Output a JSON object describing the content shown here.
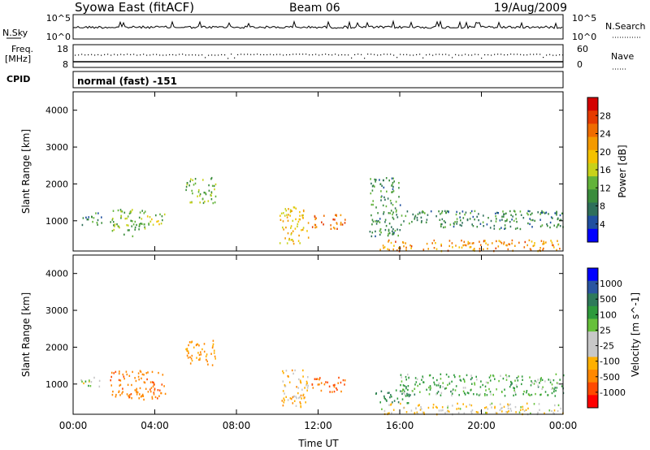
{
  "header": {
    "station": "Syowa East (fitACF)",
    "beam": "Beam 06",
    "date": "19/Aug/2009"
  },
  "top_panels": {
    "nsky_label": "N.Sky",
    "nsky_ticks": [
      "10^5",
      "10^0"
    ],
    "nsearch_label": "N.Search",
    "nsearch_ticks": [
      "10^5",
      "10^0"
    ],
    "freq_label_1": "Freq.",
    "freq_label_2": "[MHz]",
    "freq_ticks": [
      "18",
      "8"
    ],
    "nave_label": "Nave",
    "nave_ticks": [
      "60",
      "0"
    ],
    "cpid_label": "CPID",
    "cpid_text": "normal (fast) -151"
  },
  "x_axis": {
    "title": "Time UT",
    "tick_labels": [
      "00:00",
      "04:00",
      "08:00",
      "12:00",
      "16:00",
      "20:00",
      "00:00"
    ]
  },
  "colors": {
    "power_scale": [
      "#0000ff",
      "#1f4fa0",
      "#2e6f5a",
      "#3a8c3c",
      "#63b33a",
      "#c8d21a",
      "#f4c200",
      "#f49a00",
      "#ef6c00",
      "#e53a00",
      "#d40000"
    ],
    "velocity_scale": [
      "#ff0000",
      "#ff4a00",
      "#ff8800",
      "#ffb000",
      "#c8c8c8",
      "#c8c8c8",
      "#66c03a",
      "#2e9a3c",
      "#2e7a5a",
      "#2a55a0",
      "#0000ff"
    ]
  },
  "chart_data": [
    {
      "type": "heatmap",
      "title": "",
      "xlabel": "Time UT",
      "ylabel": "Slant Range [km]",
      "x_range_hours": [
        0,
        24
      ],
      "ylim": [
        180,
        4500
      ],
      "y_ticks": [
        "1000",
        "2000",
        "3000",
        "4000"
      ],
      "colorbar": {
        "label": "Power [dB]",
        "range": [
          0,
          30
        ],
        "tick_labels": [
          "4",
          "8",
          "12",
          "16",
          "20",
          "24",
          "28"
        ]
      },
      "echo_regions": [
        {
          "t_start": 0.3,
          "t_end": 1.4,
          "r_min": 900,
          "r_max": 1250,
          "level_db": 8
        },
        {
          "t_start": 1.8,
          "t_end": 3.6,
          "r_min": 600,
          "r_max": 1350,
          "level_db": 12
        },
        {
          "t_start": 3.6,
          "t_end": 4.5,
          "r_min": 900,
          "r_max": 1300,
          "level_db": 14
        },
        {
          "t_start": 5.5,
          "t_end": 7.0,
          "r_min": 1500,
          "r_max": 2200,
          "level_db": 12
        },
        {
          "t_start": 10.1,
          "t_end": 11.5,
          "r_min": 400,
          "r_max": 1400,
          "level_db": 18
        },
        {
          "t_start": 11.6,
          "t_end": 13.3,
          "r_min": 800,
          "r_max": 1200,
          "level_db": 24
        },
        {
          "t_start": 15.0,
          "t_end": 24.0,
          "r_min": 200,
          "r_max": 500,
          "level_db": 22
        },
        {
          "t_start": 14.5,
          "t_end": 16.0,
          "r_min": 600,
          "r_max": 2200,
          "level_db": 8
        },
        {
          "t_start": 16.0,
          "t_end": 24.0,
          "r_min": 800,
          "r_max": 1300,
          "level_db": 8
        }
      ]
    },
    {
      "type": "heatmap",
      "title": "",
      "xlabel": "Time UT",
      "ylabel": "Slant Range [km]",
      "x_range_hours": [
        0,
        24
      ],
      "ylim": [
        180,
        4500
      ],
      "y_ticks": [
        "1000",
        "2000",
        "3000",
        "4000"
      ],
      "colorbar": {
        "label": "Velocity [m s^-1]",
        "tick_labels": [
          "1000",
          "500",
          "100",
          "25",
          "-25",
          "-100",
          "-500",
          "-1000"
        ]
      },
      "echo_regions": [
        {
          "t_start": 0.3,
          "t_end": 1.4,
          "r_min": 950,
          "r_max": 1200,
          "velocity": 0
        },
        {
          "t_start": 1.8,
          "t_end": 4.5,
          "r_min": 600,
          "r_max": 1400,
          "velocity": -400
        },
        {
          "t_start": 5.5,
          "t_end": 7.0,
          "r_min": 1500,
          "r_max": 2200,
          "velocity": -300
        },
        {
          "t_start": 10.1,
          "t_end": 11.5,
          "r_min": 400,
          "r_max": 1400,
          "velocity": -150
        },
        {
          "t_start": 11.6,
          "t_end": 13.3,
          "r_min": 800,
          "r_max": 1200,
          "velocity": -500
        },
        {
          "t_start": 15.0,
          "t_end": 24.0,
          "r_min": 200,
          "r_max": 500,
          "velocity": -100
        },
        {
          "t_start": 14.8,
          "t_end": 16.5,
          "r_min": 500,
          "r_max": 900,
          "velocity": 300
        },
        {
          "t_start": 16.0,
          "t_end": 24.0,
          "r_min": 700,
          "r_max": 1300,
          "velocity": 120
        }
      ]
    }
  ]
}
